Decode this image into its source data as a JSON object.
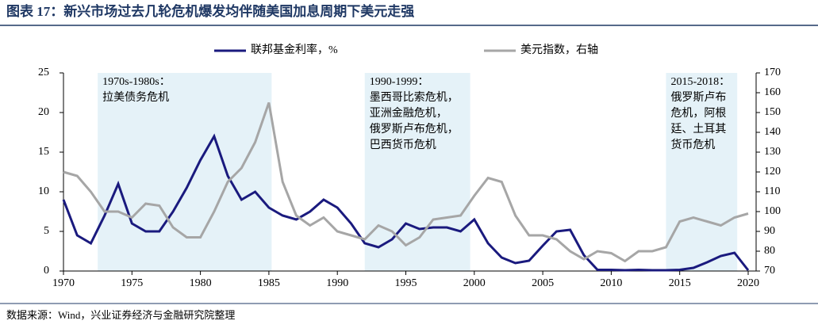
{
  "chart_data": {
    "type": "line",
    "title": "图表 17：新兴市场过去几轮危机爆发均伴随美国加息周期下美元走强",
    "source": "数据来源：Wind，兴业证券经济与金融研究院整理",
    "x": [
      1970,
      1971,
      1972,
      1973,
      1974,
      1975,
      1976,
      1977,
      1978,
      1979,
      1980,
      1981,
      1982,
      1983,
      1984,
      1985,
      1986,
      1987,
      1988,
      1989,
      1990,
      1991,
      1992,
      1993,
      1994,
      1995,
      1996,
      1997,
      1998,
      1999,
      2000,
      2001,
      2002,
      2003,
      2004,
      2005,
      2006,
      2007,
      2008,
      2009,
      2010,
      2011,
      2012,
      2013,
      2014,
      2015,
      2016,
      2017,
      2018,
      2019,
      2020
    ],
    "series": [
      {
        "name": "联邦基金利率，%",
        "color": "#1a1a7e",
        "values": [
          9,
          4.5,
          3.5,
          7,
          11,
          6,
          5,
          5,
          7.5,
          10.5,
          14,
          17,
          12,
          9,
          10,
          8,
          7,
          6.5,
          7.5,
          9,
          8,
          6,
          3.5,
          3,
          4,
          6,
          5.3,
          5.5,
          5.5,
          5,
          6.5,
          3.5,
          1.7,
          1,
          1.3,
          3.2,
          5,
          5.2,
          2,
          0.15,
          0.15,
          0.1,
          0.15,
          0.1,
          0.1,
          0.15,
          0.4,
          1.1,
          1.9,
          2.3,
          0.1
        ]
      },
      {
        "name": "美元指数，右轴",
        "color": "#a6a6a6",
        "axis": "y2",
        "values": [
          120,
          118,
          110,
          100,
          100,
          97,
          104,
          103,
          92,
          87,
          87,
          100,
          115,
          122,
          135,
          155,
          115,
          98,
          93,
          97,
          90,
          88,
          86,
          93,
          90,
          83,
          87,
          96,
          97,
          98,
          108,
          117,
          115,
          98,
          88,
          88,
          86,
          80,
          76,
          80,
          79,
          75,
          80,
          80,
          82,
          95,
          97,
          95,
          93,
          97,
          99
        ]
      }
    ],
    "spans": [
      {
        "start": 1972.5,
        "end": 1985.2,
        "label": [
          "1970s-1980s：",
          "拉美债务危机"
        ]
      },
      {
        "start": 1992,
        "end": 1999.7,
        "label": [
          "1990-1999：",
          "墨西哥比索危机，",
          "亚洲金融危机，",
          "俄罗斯卢布危机，",
          "巴西货币危机"
        ]
      },
      {
        "start": 2014,
        "end": 2019.2,
        "label": [
          "2015-2018：",
          "俄罗斯卢布",
          "危机，阿根",
          "廷、土耳其",
          "货币危机"
        ]
      }
    ],
    "xlim": [
      1970,
      2020
    ],
    "xticks": [
      1970,
      1975,
      1980,
      1985,
      1990,
      1995,
      2000,
      2005,
      2010,
      2015,
      2020
    ],
    "ylim": [
      0,
      25
    ],
    "yticks": [
      0,
      5,
      10,
      15,
      20,
      25
    ],
    "y2lim": [
      70,
      170
    ],
    "y2ticks": [
      70,
      80,
      90,
      100,
      110,
      120,
      130,
      140,
      150,
      160,
      170
    ]
  }
}
